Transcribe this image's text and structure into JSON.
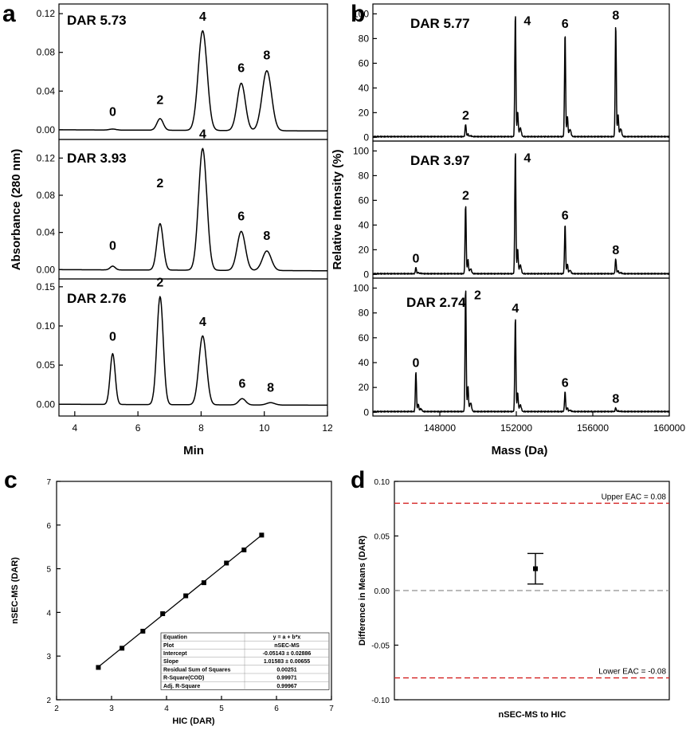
{
  "panel_labels": [
    "a",
    "b",
    "c",
    "d"
  ],
  "chart_data": [
    {
      "id": "a",
      "type": "line",
      "title": "",
      "xlabel": "Min",
      "ylabel": "Absorbance (280 nm)",
      "xlim": [
        3.5,
        12
      ],
      "xticks": [
        "4",
        "6",
        "8",
        "10",
        "12"
      ],
      "subplots": [
        {
          "dar_label": "DAR 5.73",
          "ylim": [
            -0.01,
            0.13
          ],
          "yticks": [
            "0.00",
            "0.04",
            "0.08",
            "0.12"
          ],
          "peaks": [
            {
              "label": "0",
              "x": 5.2,
              "y": 0.001,
              "w": 0.1
            },
            {
              "label": "2",
              "x": 6.7,
              "y": 0.012,
              "w": 0.1
            },
            {
              "label": "4",
              "x": 8.05,
              "y": 0.103,
              "w": 0.14
            },
            {
              "label": "6",
              "x": 9.27,
              "y": 0.049,
              "w": 0.13
            },
            {
              "label": "8",
              "x": 10.08,
              "y": 0.062,
              "w": 0.15
            }
          ]
        },
        {
          "dar_label": "DAR 3.93",
          "ylim": [
            -0.01,
            0.14
          ],
          "yticks": [
            "0.00",
            "0.04",
            "0.08",
            "0.12"
          ],
          "peaks": [
            {
              "label": "0",
              "x": 5.2,
              "y": 0.004,
              "w": 0.08
            },
            {
              "label": "2",
              "x": 6.7,
              "y": 0.05,
              "w": 0.1
            },
            {
              "label": "4",
              "x": 8.05,
              "y": 0.131,
              "w": 0.13
            },
            {
              "label": "6",
              "x": 9.27,
              "y": 0.042,
              "w": 0.13
            },
            {
              "label": "8",
              "x": 10.08,
              "y": 0.021,
              "w": 0.14
            }
          ]
        },
        {
          "dar_label": "DAR 2.76",
          "ylim": [
            -0.015,
            0.16
          ],
          "yticks": [
            "0.00",
            "0.05",
            "0.10",
            "0.15"
          ],
          "peaks": [
            {
              "label": "0",
              "x": 5.2,
              "y": 0.065,
              "w": 0.08
            },
            {
              "label": "2",
              "x": 6.7,
              "y": 0.138,
              "w": 0.1
            },
            {
              "label": "4",
              "x": 8.05,
              "y": 0.088,
              "w": 0.12
            },
            {
              "label": "6",
              "x": 9.3,
              "y": 0.008,
              "w": 0.11
            },
            {
              "label": "8",
              "x": 10.2,
              "y": 0.003,
              "w": 0.13
            }
          ]
        }
      ]
    },
    {
      "id": "b",
      "type": "line",
      "title": "",
      "xlabel": "Mass (Da)",
      "ylabel": "Relative Intensity (%)",
      "xlim": [
        144500,
        160000
      ],
      "xticks": [
        "148000",
        "152000",
        "156000",
        "160000"
      ],
      "subplots": [
        {
          "dar_label": "DAR 5.77",
          "ylim": [
            -3,
            108
          ],
          "yticks": [
            "0",
            "20",
            "40",
            "60",
            "80",
            "100"
          ],
          "peaks": [
            {
              "label": "",
              "x": 146750,
              "y": 0
            },
            {
              "label": "2",
              "x": 149350,
              "y": 10
            },
            {
              "label": "4",
              "x": 151950,
              "y": 100
            },
            {
              "label": "6",
              "x": 154550,
              "y": 84
            },
            {
              "label": "8",
              "x": 157200,
              "y": 91
            }
          ]
        },
        {
          "dar_label": "DAR 3.97",
          "ylim": [
            -3,
            108
          ],
          "yticks": [
            "0",
            "20",
            "40",
            "60",
            "80",
            "100"
          ],
          "peaks": [
            {
              "label": "0",
              "x": 146750,
              "y": 5
            },
            {
              "label": "2",
              "x": 149350,
              "y": 56
            },
            {
              "label": "4",
              "x": 151950,
              "y": 100
            },
            {
              "label": "6",
              "x": 154550,
              "y": 40
            },
            {
              "label": "8",
              "x": 157200,
              "y": 12
            }
          ]
        },
        {
          "dar_label": "DAR 2.74",
          "ylim": [
            -3,
            108
          ],
          "yticks": [
            "0",
            "20",
            "40",
            "60",
            "80",
            "100"
          ],
          "peaks": [
            {
              "label": "0",
              "x": 146750,
              "y": 32
            },
            {
              "label": "2",
              "x": 149350,
              "y": 100
            },
            {
              "label": "4",
              "x": 151950,
              "y": 76
            },
            {
              "label": "6",
              "x": 154550,
              "y": 16
            },
            {
              "label": "8",
              "x": 157200,
              "y": 3
            }
          ]
        }
      ]
    },
    {
      "id": "c",
      "type": "scatter",
      "title": "",
      "xlabel": "HIC (DAR)",
      "ylabel": "nSEC-MS (DAR)",
      "xlim": [
        2,
        7
      ],
      "ylim": [
        2,
        7
      ],
      "xticks": [
        "2",
        "3",
        "4",
        "5",
        "6",
        "7"
      ],
      "yticks": [
        "2",
        "3",
        "4",
        "5",
        "6",
        "7"
      ],
      "x": [
        2.76,
        3.19,
        3.57,
        3.93,
        4.35,
        4.68,
        5.09,
        5.41,
        5.73
      ],
      "y": [
        2.74,
        3.18,
        3.57,
        3.97,
        4.38,
        4.68,
        5.13,
        5.43,
        5.77
      ],
      "fit": {
        "intercept": -0.05143,
        "slope": 1.01583
      },
      "table": [
        [
          "Equation",
          "y = a + b*x"
        ],
        [
          "Plot",
          "nSEC-MS"
        ],
        [
          "Intercept",
          "-0.05143 ± 0.02886"
        ],
        [
          "Slope",
          "1.01583 ± 0.00655"
        ],
        [
          "Residual Sum of Squares",
          "0.00251"
        ],
        [
          "R-Square(COD)",
          "0.99971"
        ],
        [
          "Adj. R-Square",
          "0.99967"
        ]
      ]
    },
    {
      "id": "d",
      "type": "scatter",
      "title": "",
      "xlabel": "nSEC-MS to HIC",
      "ylabel": "Difference in Means (DAR)",
      "ylim": [
        -0.1,
        0.1
      ],
      "yticks": [
        "0.10",
        "0.05",
        "0.00",
        "-0.05",
        "-0.10"
      ],
      "point": {
        "value": 0.02,
        "upper": 0.034,
        "lower": 0.006
      },
      "upper_eac": {
        "value": 0.08,
        "label": "Upper EAC = 0.08"
      },
      "lower_eac": {
        "value": -0.08,
        "label": "Lower EAC = -0.08"
      },
      "ref_color": "#d42020",
      "zero_color": "#909090"
    }
  ]
}
